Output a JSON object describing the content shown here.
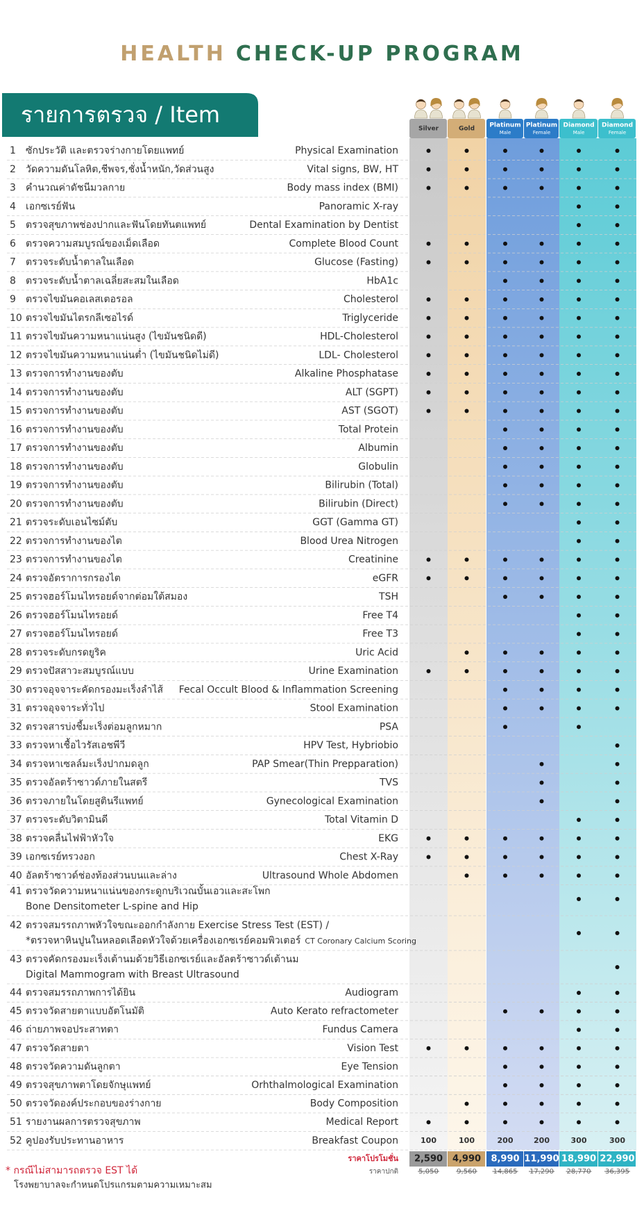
{
  "title": {
    "part1": "HEALTH",
    "part2": "CHECK-UP PROGRAM"
  },
  "section_header": "รายการตรวจ / Item",
  "packages": [
    {
      "name": "Silver"
    },
    {
      "name": "Gold"
    },
    {
      "name": "Platinum",
      "sub": "Male"
    },
    {
      "name": "Platinum",
      "sub": "Female"
    },
    {
      "name": "Diamond",
      "sub": "Male"
    },
    {
      "name": "Diamond",
      "sub": "Female"
    }
  ],
  "items": [
    {
      "no": 1,
      "th": "ซักประวัติ และตรวจร่างกายโดยแพทย์",
      "en": "Physical Examination",
      "checks": [
        1,
        1,
        1,
        1,
        1,
        1
      ]
    },
    {
      "no": 2,
      "th": "วัดความดันโลหิต,ชีพจร,ชั่งน้ำหนัก,วัดส่วนสูง",
      "en": "Vital signs, BW, HT",
      "checks": [
        1,
        1,
        1,
        1,
        1,
        1
      ]
    },
    {
      "no": 3,
      "th": "คำนวณค่าดัชนีมวลกาย",
      "en": "Body mass index (BMI)",
      "checks": [
        1,
        1,
        1,
        1,
        1,
        1
      ]
    },
    {
      "no": 4,
      "th": "เอกซเรย์ฟัน",
      "en": "Panoramic X-ray",
      "checks": [
        0,
        0,
        0,
        0,
        1,
        1
      ]
    },
    {
      "no": 5,
      "th": "ตรวจสุขภาพช่องปากและฟันโดยทันตแพทย์",
      "en": "Dental Examination by Dentist",
      "checks": [
        0,
        0,
        0,
        0,
        1,
        1
      ]
    },
    {
      "no": 6,
      "th": "ตรวจความสมบูรณ์ของเม็ดเลือด",
      "en": "Complete Blood Count",
      "checks": [
        1,
        1,
        1,
        1,
        1,
        1
      ]
    },
    {
      "no": 7,
      "th": "ตรวจระดับน้ำตาลในเลือด",
      "en": "Glucose (Fasting)",
      "checks": [
        1,
        1,
        1,
        1,
        1,
        1
      ]
    },
    {
      "no": 8,
      "th": "ตรวจระดับน้ำตาลเฉลี่ยสะสมในเลือด",
      "en": "HbA1c",
      "checks": [
        0,
        0,
        1,
        1,
        1,
        1
      ]
    },
    {
      "no": 9,
      "th": "ตรวจไขมันคอเลสเตอรอล",
      "en": "Cholesterol",
      "checks": [
        1,
        1,
        1,
        1,
        1,
        1
      ]
    },
    {
      "no": 10,
      "th": "ตรวจไขมันไตรกลีเซอไรด์",
      "en": "Triglyceride",
      "checks": [
        1,
        1,
        1,
        1,
        1,
        1
      ]
    },
    {
      "no": 11,
      "th": "ตรวจไขมันความหนาแน่นสูง (ไขมันชนิดดี)",
      "en": "HDL-Cholesterol",
      "checks": [
        1,
        1,
        1,
        1,
        1,
        1
      ]
    },
    {
      "no": 12,
      "th": "ตรวจไขมันความหนาแน่นต่ำ (ไขมันชนิดไม่ดี)",
      "en": "LDL- Cholesterol",
      "checks": [
        1,
        1,
        1,
        1,
        1,
        1
      ]
    },
    {
      "no": 13,
      "th": "ตรวจการทำงานของตับ",
      "en": "Alkaline Phosphatase",
      "checks": [
        1,
        1,
        1,
        1,
        1,
        1
      ]
    },
    {
      "no": 14,
      "th": "ตรวจการทำงานของตับ",
      "en": "ALT (SGPT)",
      "checks": [
        1,
        1,
        1,
        1,
        1,
        1
      ]
    },
    {
      "no": 15,
      "th": "ตรวจการทำงานของตับ",
      "en": "AST (SGOT)",
      "checks": [
        1,
        1,
        1,
        1,
        1,
        1
      ]
    },
    {
      "no": 16,
      "th": "ตรวจการทำงานของตับ",
      "en": "Total Protein",
      "checks": [
        0,
        0,
        1,
        1,
        1,
        1
      ]
    },
    {
      "no": 17,
      "th": "ตรวจการทำงานของตับ",
      "en": "Albumin",
      "checks": [
        0,
        0,
        1,
        1,
        1,
        1
      ]
    },
    {
      "no": 18,
      "th": "ตรวจการทำงานของตับ",
      "en": "Globulin",
      "checks": [
        0,
        0,
        1,
        1,
        1,
        1
      ]
    },
    {
      "no": 19,
      "th": "ตรวจการทำงานของตับ",
      "en": "Bilirubin (Total)",
      "checks": [
        0,
        0,
        1,
        1,
        1,
        1
      ]
    },
    {
      "no": 20,
      "th": "ตรวจการทำงานของตับ",
      "en": "Bilirubin (Direct)",
      "checks": [
        0,
        0,
        1,
        1,
        1,
        1
      ]
    },
    {
      "no": 21,
      "th": "ตรวจระดับเอนไซม์ตับ",
      "en": "GGT (Gamma GT)",
      "checks": [
        0,
        0,
        0,
        0,
        1,
        1
      ]
    },
    {
      "no": 22,
      "th": "ตรวจการทำงานของไต",
      "en": "Blood Urea Nitrogen",
      "checks": [
        0,
        0,
        0,
        0,
        1,
        1
      ]
    },
    {
      "no": 23,
      "th": "ตรวจการทำงานของไต",
      "en": "Creatinine",
      "checks": [
        1,
        1,
        1,
        1,
        1,
        1
      ]
    },
    {
      "no": 24,
      "th": "ตรวจอัตราการกรองไต",
      "en": "eGFR",
      "checks": [
        1,
        1,
        1,
        1,
        1,
        1
      ]
    },
    {
      "no": 25,
      "th": "ตรวจฮอร์โมนไทรอยด์จากต่อมใต้สมอง",
      "en": "TSH",
      "checks": [
        0,
        0,
        1,
        1,
        1,
        1
      ]
    },
    {
      "no": 26,
      "th": "ตรวจฮอร์โมนไทรอยด์",
      "en": "Free T4",
      "checks": [
        0,
        0,
        0,
        0,
        1,
        1
      ]
    },
    {
      "no": 27,
      "th": "ตรวจฮอร์โมนไทรอยด์",
      "en": "Free T3",
      "checks": [
        0,
        0,
        0,
        0,
        1,
        1
      ]
    },
    {
      "no": 28,
      "th": "ตรวจระดับกรดยูริค",
      "en": "Uric Acid",
      "checks": [
        0,
        1,
        1,
        1,
        1,
        1
      ]
    },
    {
      "no": 29,
      "th": "ตรวจปัสสาวะสมบูรณ์แบบ",
      "en": "Urine Examination",
      "checks": [
        1,
        1,
        1,
        1,
        1,
        1
      ]
    },
    {
      "no": 30,
      "th": "ตรวจอุจจาระคัดกรองมะเร็งลำไส้",
      "en": "Fecal Occult Blood & Inflammation Screening",
      "checks": [
        0,
        0,
        1,
        1,
        1,
        1
      ]
    },
    {
      "no": 31,
      "th": "ตรวจอุจจาระทั่วไป",
      "en": "Stool Examination",
      "checks": [
        0,
        0,
        1,
        1,
        1,
        1
      ]
    },
    {
      "no": 32,
      "th": "ตรวจสารบ่งชี้มะเร็งต่อมลูกหมาก",
      "en": "PSA",
      "checks": [
        0,
        0,
        1,
        0,
        1,
        0
      ]
    },
    {
      "no": 33,
      "th": "ตรวจหาเชื้อไวรัสเอชพีวี",
      "en": "HPV  Test, Hybriobio",
      "checks": [
        0,
        0,
        0,
        0,
        0,
        1
      ]
    },
    {
      "no": 34,
      "th": "ตรวจหาเซลล์มะเร็งปากมดลูก",
      "en": "PAP Smear(Thin Prepparation)",
      "checks": [
        0,
        0,
        0,
        1,
        0,
        1
      ]
    },
    {
      "no": 35,
      "th": "ตรวจอัลตร้าซาวด์ภายในสตรี",
      "en": "TVS",
      "checks": [
        0,
        0,
        0,
        1,
        0,
        1
      ]
    },
    {
      "no": 36,
      "th": "ตรวจภายในโดยสูตินรีแพทย์",
      "en": "Gynecological Examination",
      "checks": [
        0,
        0,
        0,
        1,
        0,
        1
      ]
    },
    {
      "no": 37,
      "th": "ตรวจระดับวิตามินดี",
      "en": "Total Vitamin D",
      "checks": [
        0,
        0,
        0,
        0,
        1,
        1
      ]
    },
    {
      "no": 38,
      "th": "ตรวจคลื่นไฟฟ้าหัวใจ",
      "en": "EKG",
      "checks": [
        1,
        1,
        1,
        1,
        1,
        1
      ]
    },
    {
      "no": 39,
      "th": "เอกซเรย์ทรวงอก",
      "en": "Chest X-Ray",
      "checks": [
        1,
        1,
        1,
        1,
        1,
        1
      ]
    },
    {
      "no": 40,
      "th": "อัลตร้าซาวด์ช่องท้องส่วนบนและล่าง",
      "en": "Ultrasound Whole Abdomen",
      "checks": [
        0,
        1,
        1,
        1,
        1,
        1
      ]
    },
    {
      "no": 41,
      "lines": [
        "ตรวจวัดความหนาแน่นของกระดูกบริเวณบั้นเอวและสะโพก",
        "Bone Densitometer L-spine and Hip"
      ],
      "checks": [
        0,
        0,
        0,
        0,
        1,
        1
      ]
    },
    {
      "no": 42,
      "lines": [
        "ตรวจสมรรถภาพหัวใจขณะออกกำลังกาย Exercise Stress Test (EST) /",
        "*ตรวจหาหินปูนในหลอดเลือดหัวใจด้วยเครื่องเอกซเรย์คอมพิวเตอร์"
      ],
      "note": "CT Coronary Calcium Scoring",
      "checks": [
        0,
        0,
        0,
        0,
        1,
        1
      ]
    },
    {
      "no": 43,
      "lines": [
        "ตรวจคัดกรองมะเร็งเต้านมด้วยวิธีเอกซเรย์และอัลตร้าซาวด์เต้านม",
        "Digital Mammogram with Breast Ultrasound"
      ],
      "checks": [
        0,
        0,
        0,
        0,
        0,
        1
      ]
    },
    {
      "no": 44,
      "th": "ตรวจสมรรถภาพการได้ยิน",
      "en": "Audiogram",
      "checks": [
        0,
        0,
        0,
        0,
        1,
        1
      ]
    },
    {
      "no": 45,
      "th": "ตรวจวัดสายตาแบบอัตโนมัติ",
      "en": "Auto Kerato refractometer",
      "checks": [
        0,
        0,
        1,
        1,
        1,
        1
      ]
    },
    {
      "no": 46,
      "th": "ถ่ายภาพจอประสาทตา",
      "en": "Fundus Camera",
      "checks": [
        0,
        0,
        0,
        0,
        1,
        1
      ]
    },
    {
      "no": 47,
      "th": "ตรวจวัดสายตา",
      "en": "Vision Test",
      "checks": [
        1,
        1,
        1,
        1,
        1,
        1
      ]
    },
    {
      "no": 48,
      "th": "ตรวจวัดความดันลูกตา",
      "en": "Eye Tension",
      "checks": [
        0,
        0,
        1,
        1,
        1,
        1
      ]
    },
    {
      "no": 49,
      "th": "ตรวจสุขภาพตาโดยจักษุแพทย์",
      "en": "Orhthalmological Examination",
      "checks": [
        0,
        0,
        1,
        1,
        1,
        1
      ]
    },
    {
      "no": 50,
      "th": "ตรวจวัดองค์ประกอบของร่างกาย",
      "en": "Body Composition",
      "checks": [
        0,
        1,
        1,
        1,
        1,
        1
      ]
    },
    {
      "no": 51,
      "th": "รายงานผลการตรวจสุขภาพ",
      "en": "Medical Report",
      "checks": [
        1,
        1,
        1,
        1,
        1,
        1
      ]
    },
    {
      "no": 52,
      "th": "คูปองรับประทานอาหาร",
      "en": "Breakfast Coupon",
      "values": [
        100,
        100,
        200,
        200,
        300,
        300
      ]
    }
  ],
  "prices": {
    "promo_label": "ราคาโปรโมชั่น",
    "promo": [
      "2,590",
      "4,990",
      "8,990",
      "11,990",
      "18,990",
      "22,990"
    ],
    "regular_label": "ราคาปกติ",
    "regular": [
      "5,050",
      "9,560",
      "14,865",
      "17,290",
      "28,770",
      "36,395"
    ]
  },
  "footnote": {
    "line1": "* กรณีไม่สามารถตรวจ EST ได้",
    "line2": "โรงพยาบาลจะกำหนดโปรแกรมตามความเหมาะสม"
  }
}
